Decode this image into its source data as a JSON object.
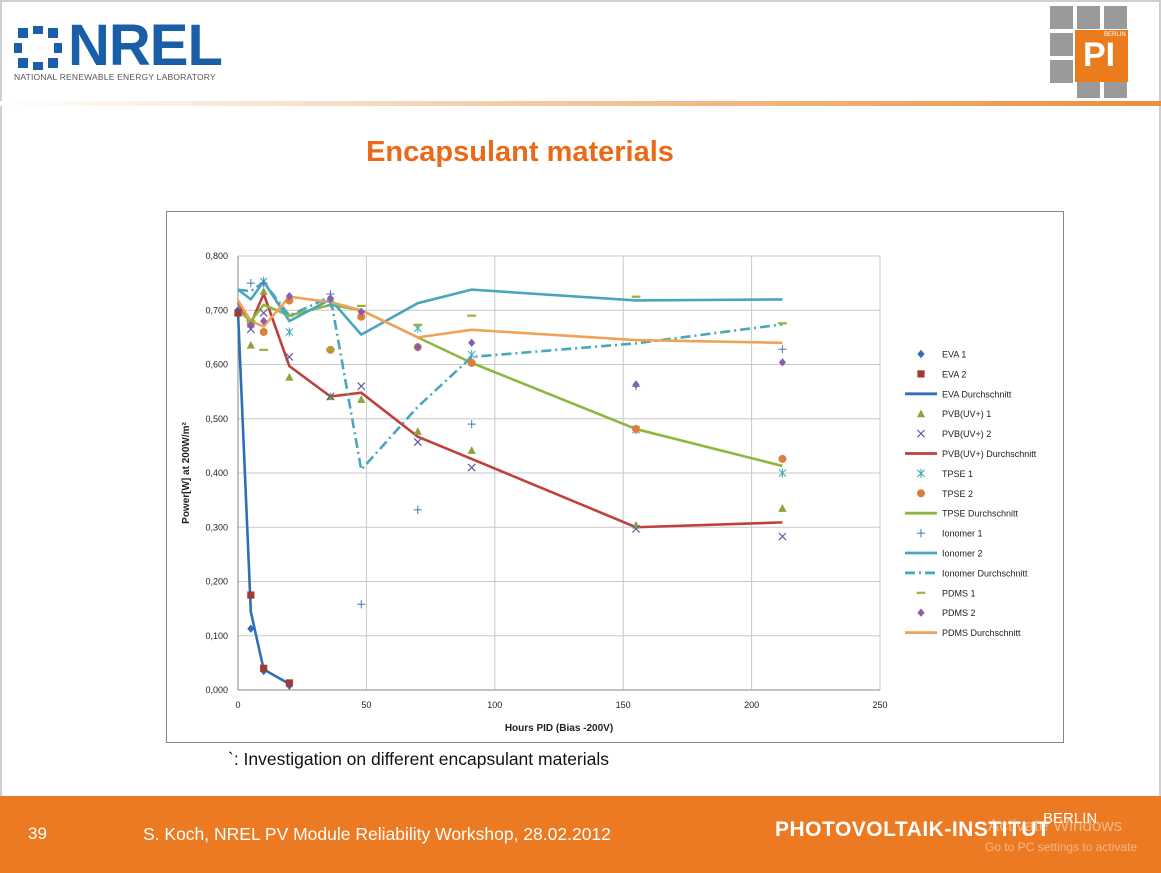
{
  "header": {
    "logo_text": "NREL",
    "logo_subtitle": "NATIONAL RENEWABLE ENERGY LABORATORY",
    "pi_logo_text": "PI",
    "pi_logo_small": "BERLIN"
  },
  "slide": {
    "title": "Encapsulant materials",
    "caption": "`: Investigation on different encapsulant materials"
  },
  "footer": {
    "slide_number": "39",
    "text": "S. Koch, NREL PV Module Reliability Workshop, 28.02.2012",
    "brand": "PHOTOVOLTAIK-INSTITUT",
    "brand_city": "BERLIN",
    "watermark_line1": "Activate Windows",
    "watermark_line2": "Go to PC settings to activate"
  },
  "colors": {
    "title": "#ea6a18",
    "footer": "#ec7a22",
    "eva": "#2f6fb5",
    "eva2": "#a03a36",
    "pvb": "#c0403c",
    "pvb_points": "#8aa63a",
    "pvb2": "#5e5a9c",
    "tpse": "#8db83e",
    "tpse1": "#4aa7bb",
    "tpse2": "#dd7f3a",
    "ionomer": "#4aa7bb",
    "ionomer1": "#4a75b3",
    "pdms": "#f0a25a",
    "pdms1": "#8db83e",
    "pdms2": "#8a5cb0"
  },
  "chart_data": {
    "type": "scatter",
    "title": "",
    "xlabel": "Hours PID (Bias -200V)",
    "ylabel": "Power[W] at 200W/m²",
    "xlim": [
      0,
      250
    ],
    "ylim": [
      0,
      0.8
    ],
    "xticks": [
      0,
      50,
      100,
      150,
      200,
      250
    ],
    "xtick_labels": [
      "0",
      "50",
      "100",
      "150",
      "200",
      "250"
    ],
    "yticks": [
      0,
      0.1,
      0.2,
      0.3,
      0.4,
      0.5,
      0.6,
      0.7,
      0.8
    ],
    "ytick_labels": [
      "0,000",
      "0,100",
      "0,200",
      "0,300",
      "0,400",
      "0,500",
      "0,600",
      "0,700",
      "0,800"
    ],
    "grid": true,
    "legend_position": "right",
    "series": [
      {
        "name": "EVA 1",
        "kind": "marker",
        "marker": "diamond",
        "color": "#2f6fb5",
        "points": [
          [
            0,
            0.7
          ],
          [
            5,
            0.113
          ],
          [
            10,
            0.035
          ],
          [
            20,
            0.008
          ]
        ]
      },
      {
        "name": "EVA 2",
        "kind": "marker",
        "marker": "square",
        "color": "#a03a36",
        "points": [
          [
            0,
            0.695
          ],
          [
            5,
            0.175
          ],
          [
            10,
            0.04
          ],
          [
            20,
            0.013
          ]
        ]
      },
      {
        "name": "EVA Durchschnitt",
        "kind": "line",
        "dash": "",
        "color": "#2f6fb5",
        "points": [
          [
            0,
            0.697
          ],
          [
            5,
            0.144
          ],
          [
            10,
            0.038
          ],
          [
            20,
            0.011
          ]
        ]
      },
      {
        "name": "PVB(UV+) 1",
        "kind": "marker",
        "marker": "triangle",
        "color": "#8aa63a",
        "points": [
          [
            5,
            0.636
          ],
          [
            10,
            0.735
          ],
          [
            20,
            0.577
          ],
          [
            36,
            0.541
          ],
          [
            48,
            0.536
          ],
          [
            70,
            0.477
          ],
          [
            91,
            0.442
          ],
          [
            155,
            0.304
          ],
          [
            212,
            0.335
          ]
        ]
      },
      {
        "name": "PVB(UV+) 2",
        "kind": "marker",
        "marker": "x",
        "color": "#5e5a9c",
        "points": [
          [
            5,
            0.665
          ],
          [
            10,
            0.695
          ],
          [
            20,
            0.614
          ],
          [
            36,
            0.541
          ],
          [
            48,
            0.56
          ],
          [
            70,
            0.457
          ],
          [
            91,
            0.41
          ],
          [
            155,
            0.297
          ],
          [
            212,
            0.283
          ]
        ]
      },
      {
        "name": "PVB(UV+) Durchschnitt",
        "kind": "line",
        "dash": "",
        "color": "#c0403c",
        "points": [
          [
            0,
            0.715
          ],
          [
            5,
            0.675
          ],
          [
            10,
            0.73
          ],
          [
            20,
            0.597
          ],
          [
            36,
            0.541
          ],
          [
            48,
            0.548
          ],
          [
            70,
            0.467
          ],
          [
            91,
            0.426
          ],
          [
            155,
            0.3
          ],
          [
            212,
            0.309
          ]
        ]
      },
      {
        "name": "TPSE 1",
        "kind": "marker",
        "marker": "star",
        "color": "#4aa7bb",
        "points": [
          [
            5,
            0.675
          ],
          [
            10,
            0.753
          ],
          [
            20,
            0.66
          ],
          [
            36,
            0.713
          ],
          [
            48,
            0.692
          ],
          [
            70,
            0.667
          ],
          [
            91,
            0.618
          ],
          [
            155,
            0.48
          ],
          [
            212,
            0.4
          ]
        ]
      },
      {
        "name": "TPSE 2",
        "kind": "marker",
        "marker": "circle",
        "color": "#dd7f3a",
        "points": [
          [
            5,
            0.675
          ],
          [
            10,
            0.66
          ],
          [
            20,
            0.718
          ],
          [
            36,
            0.627
          ],
          [
            48,
            0.688
          ],
          [
            70,
            0.632
          ],
          [
            91,
            0.603
          ],
          [
            155,
            0.481
          ],
          [
            212,
            0.426
          ]
        ]
      },
      {
        "name": "TPSE Durchschnitt",
        "kind": "line",
        "dash": "",
        "color": "#8db83e",
        "points": [
          [
            0,
            0.7
          ],
          [
            5,
            0.68
          ],
          [
            10,
            0.71
          ],
          [
            20,
            0.69
          ],
          [
            36,
            0.71
          ],
          [
            48,
            0.7
          ],
          [
            70,
            0.65
          ],
          [
            91,
            0.603
          ],
          [
            155,
            0.481
          ],
          [
            212,
            0.413
          ]
        ]
      },
      {
        "name": "Ionomer 1",
        "kind": "marker",
        "marker": "plus",
        "color": "#4a75b3",
        "points": [
          [
            5,
            0.75
          ],
          [
            10,
            0.75
          ],
          [
            36,
            0.73
          ],
          [
            48,
            0.158
          ],
          [
            70,
            0.332
          ],
          [
            91,
            0.49
          ],
          [
            155,
            0.56
          ],
          [
            212,
            0.628
          ]
        ]
      },
      {
        "name": "Ionomer 2",
        "kind": "line",
        "dash": "",
        "color": "#4aa7bb",
        "points": [
          [
            0,
            0.738
          ],
          [
            5,
            0.72
          ],
          [
            10,
            0.753
          ],
          [
            20,
            0.68
          ],
          [
            36,
            0.72
          ],
          [
            48,
            0.655
          ],
          [
            70,
            0.713
          ],
          [
            91,
            0.738
          ],
          [
            155,
            0.718
          ],
          [
            212,
            0.72
          ]
        ]
      },
      {
        "name": "Ionomer Durchschnitt",
        "kind": "line",
        "dash": "10 4 2 4",
        "color": "#4aa7bb",
        "points": [
          [
            0,
            0.738
          ],
          [
            5,
            0.735
          ],
          [
            10,
            0.752
          ],
          [
            20,
            0.69
          ],
          [
            36,
            0.725
          ],
          [
            48,
            0.406
          ],
          [
            70,
            0.522
          ],
          [
            91,
            0.614
          ],
          [
            155,
            0.639
          ],
          [
            212,
            0.674
          ]
        ]
      },
      {
        "name": "PDMS 1",
        "kind": "marker",
        "marker": "dash",
        "color": "#8db83e",
        "points": [
          [
            5,
            0.68
          ],
          [
            10,
            0.627
          ],
          [
            20,
            0.69
          ],
          [
            36,
            0.628
          ],
          [
            48,
            0.708
          ],
          [
            70,
            0.673
          ],
          [
            91,
            0.69
          ],
          [
            155,
            0.725
          ],
          [
            212,
            0.676
          ]
        ]
      },
      {
        "name": "PDMS 2",
        "kind": "marker",
        "marker": "diamond",
        "color": "#8a5cb0",
        "points": [
          [
            5,
            0.672
          ],
          [
            10,
            0.68
          ],
          [
            20,
            0.726
          ],
          [
            36,
            0.722
          ],
          [
            48,
            0.697
          ],
          [
            70,
            0.632
          ],
          [
            91,
            0.64
          ],
          [
            155,
            0.563
          ],
          [
            212,
            0.604
          ]
        ]
      },
      {
        "name": "PDMS Durchschnitt",
        "kind": "line",
        "dash": "",
        "color": "#f0a25a",
        "points": [
          [
            0,
            0.718
          ],
          [
            5,
            0.68
          ],
          [
            10,
            0.67
          ],
          [
            20,
            0.725
          ],
          [
            36,
            0.715
          ],
          [
            48,
            0.7
          ],
          [
            70,
            0.65
          ],
          [
            91,
            0.664
          ],
          [
            155,
            0.645
          ],
          [
            212,
            0.64
          ]
        ]
      }
    ]
  }
}
